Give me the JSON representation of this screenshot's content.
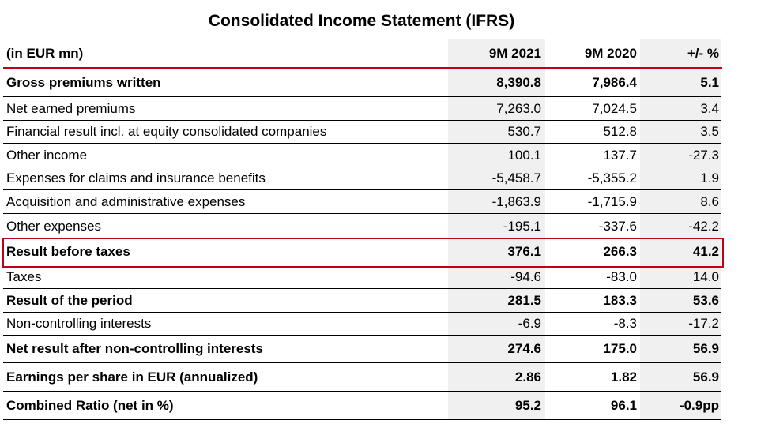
{
  "title": "Consolidated Income Statement (IFRS)",
  "header": {
    "label": "(in EUR mn)",
    "col1": "9M 2021",
    "col2": "9M 2020",
    "col3": "+/- %"
  },
  "colors": {
    "accent_red": "#c00018",
    "shade": "#f0f0f0"
  },
  "rows": [
    {
      "label": "Gross premiums written",
      "v2021": "8,390.8",
      "v2020": "7,986.4",
      "change": "5.1",
      "bold": true
    },
    {
      "label": "Net earned premiums",
      "v2021": "7,263.0",
      "v2020": "7,024.5",
      "change": "3.4",
      "bold": false
    },
    {
      "label": "Financial result incl. at equity consolidated companies",
      "v2021": "530.7",
      "v2020": "512.8",
      "change": "3.5",
      "bold": false
    },
    {
      "label": "Other income",
      "v2021": "100.1",
      "v2020": "137.7",
      "change": "-27.3",
      "bold": false
    },
    {
      "label": "Expenses for claims and insurance benefits",
      "v2021": "-5,458.7",
      "v2020": "-5,355.2",
      "change": "1.9",
      "bold": false
    },
    {
      "label": "Acquisition and administrative expenses",
      "v2021": "-1,863.9",
      "v2020": "-1,715.9",
      "change": "8.6",
      "bold": false
    },
    {
      "label": "Other expenses",
      "v2021": "-195.1",
      "v2020": "-337.6",
      "change": "-42.2",
      "bold": false
    },
    {
      "label": "Result before taxes",
      "v2021": "376.1",
      "v2020": "266.3",
      "change": "41.2",
      "bold": true,
      "highlighted": true
    },
    {
      "label": "Taxes",
      "v2021": "-94.6",
      "v2020": "-83.0",
      "change": "14.0",
      "bold": false
    },
    {
      "label": "Result of the period",
      "v2021": "281.5",
      "v2020": "183.3",
      "change": "53.6",
      "bold": true
    },
    {
      "label": "Non-controlling interests",
      "v2021": "-6.9",
      "v2020": "-8.3",
      "change": "-17.2",
      "bold": false
    },
    {
      "label": "Net result after non-controlling interests",
      "v2021": "274.6",
      "v2020": "175.0",
      "change": "56.9",
      "bold": true
    },
    {
      "label": "Earnings per share in EUR (annualized)",
      "v2021": "2.86",
      "v2020": "1.82",
      "change": "56.9",
      "bold": true
    },
    {
      "label": "Combined Ratio (net in %)",
      "v2021": "95.2",
      "v2020": "96.1",
      "change": "-0.9pp",
      "bold": true
    }
  ]
}
